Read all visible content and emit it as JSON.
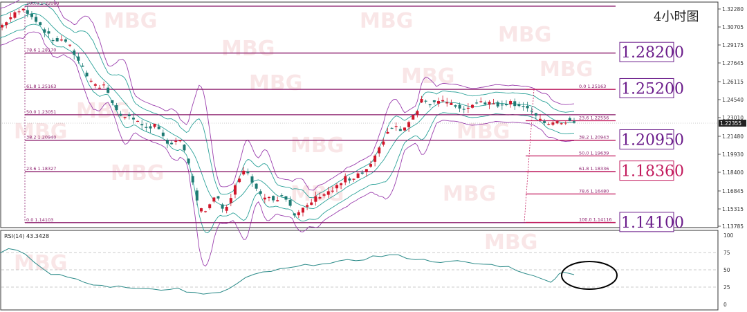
{
  "chart_data": {
    "type": "candlestick",
    "timeframe_label": "4小时图",
    "watermark": "MBG",
    "y_ticks": [
      "1.32280",
      "1.30705",
      "1.29175",
      "1.27645",
      "1.26115",
      "1.24540",
      "1.23010",
      "1.21480",
      "1.19930",
      "1.18400",
      "1.16845",
      "1.15315",
      "1.13785"
    ],
    "ylim": [
      1.1369,
      1.324
    ],
    "current_price": 1.22355,
    "current_price_label": "1.22355",
    "fib_left": [
      {
        "label": "100.0  1.32060",
        "price": 1.3206
      },
      {
        "label": "78.6  1.28170",
        "price": 1.2817
      },
      {
        "label": "61.8  1.25163",
        "price": 1.25163
      },
      {
        "label": "50.0  1.23051",
        "price": 1.23051
      },
      {
        "label": "38.2  1.20940",
        "price": 1.2094
      },
      {
        "label": "23.6  1.18327",
        "price": 1.18327
      },
      {
        "label": "0.0  1.14103",
        "price": 1.14103
      }
    ],
    "fib_right": [
      {
        "label": "0.0  1.25163",
        "price": 1.25163
      },
      {
        "label": "23.6  1.22556",
        "price": 1.22556
      },
      {
        "label": "38.2  1.20943",
        "price": 1.20943
      },
      {
        "label": "50.0  1.19639",
        "price": 1.19639
      },
      {
        "label": "61.8  1.18336",
        "price": 1.18336
      },
      {
        "label": "78.6  1.16480",
        "price": 1.1648
      },
      {
        "label": "100.0  1.14116",
        "price": 1.14116
      }
    ],
    "key_levels": [
      {
        "label": "1.28200",
        "price": 1.282,
        "color": "#6a1b8a"
      },
      {
        "label": "1.25200",
        "price": 1.252,
        "color": "#6a1b8a"
      },
      {
        "label": "1.20950",
        "price": 1.2095,
        "color": "#6a1b8a"
      },
      {
        "label": "1.18360",
        "price": 1.1836,
        "color": "#c2185b"
      },
      {
        "label": "1.14100",
        "price": 1.141,
        "color": "#6a1b8a"
      }
    ],
    "close_path": [
      [
        0,
        1.303
      ],
      [
        4,
        1.31
      ],
      [
        7,
        1.314
      ],
      [
        10,
        1.318
      ],
      [
        13,
        1.316
      ],
      [
        16,
        1.311
      ],
      [
        19,
        1.305
      ],
      [
        22,
        1.298
      ],
      [
        25,
        1.292
      ],
      [
        28,
        1.293
      ],
      [
        31,
        1.292
      ],
      [
        34,
        1.284
      ],
      [
        37,
        1.276
      ],
      [
        40,
        1.266
      ],
      [
        43,
        1.257
      ],
      [
        46,
        1.253
      ],
      [
        49,
        1.256
      ],
      [
        52,
        1.244
      ],
      [
        55,
        1.236
      ],
      [
        58,
        1.227
      ],
      [
        61,
        1.23
      ],
      [
        64,
        1.225
      ],
      [
        67,
        1.222
      ],
      [
        70,
        1.22
      ],
      [
        73,
        1.222
      ],
      [
        76,
        1.214
      ],
      [
        79,
        1.206
      ],
      [
        82,
        1.209
      ],
      [
        85,
        1.21
      ],
      [
        88,
        1.195
      ],
      [
        91,
        1.175
      ],
      [
        94,
        1.152
      ],
      [
        97,
        1.149
      ],
      [
        100,
        1.16
      ],
      [
        103,
        1.162
      ],
      [
        106,
        1.15
      ],
      [
        109,
        1.16
      ],
      [
        112,
        1.176
      ],
      [
        115,
        1.186
      ],
      [
        118,
        1.178
      ],
      [
        121,
        1.171
      ],
      [
        124,
        1.162
      ],
      [
        127,
        1.163
      ],
      [
        130,
        1.16
      ],
      [
        133,
        1.165
      ],
      [
        136,
        1.16
      ],
      [
        139,
        1.146
      ],
      [
        142,
        1.15
      ],
      [
        145,
        1.155
      ],
      [
        148,
        1.16
      ],
      [
        151,
        1.164
      ],
      [
        154,
        1.166
      ],
      [
        157,
        1.168
      ],
      [
        160,
        1.172
      ],
      [
        163,
        1.178
      ],
      [
        166,
        1.175
      ],
      [
        169,
        1.18
      ],
      [
        172,
        1.183
      ],
      [
        175,
        1.188
      ],
      [
        178,
        1.198
      ],
      [
        181,
        1.21
      ],
      [
        184,
        1.219
      ],
      [
        187,
        1.22
      ],
      [
        190,
        1.216
      ],
      [
        193,
        1.225
      ],
      [
        196,
        1.23
      ],
      [
        199,
        1.245
      ],
      [
        202,
        1.24
      ],
      [
        205,
        1.241
      ],
      [
        208,
        1.243
      ],
      [
        211,
        1.24
      ],
      [
        214,
        1.238
      ],
      [
        217,
        1.237
      ],
      [
        220,
        1.234
      ],
      [
        223,
        1.24
      ],
      [
        226,
        1.242
      ],
      [
        229,
        1.241
      ],
      [
        232,
        1.24
      ],
      [
        235,
        1.239
      ],
      [
        238,
        1.24
      ],
      [
        241,
        1.241
      ],
      [
        244,
        1.239
      ],
      [
        247,
        1.238
      ],
      [
        250,
        1.235
      ],
      [
        253,
        1.228
      ],
      [
        256,
        1.224
      ],
      [
        259,
        1.224
      ],
      [
        262,
        1.223
      ],
      [
        265,
        1.224
      ],
      [
        268,
        1.226
      ],
      [
        271,
        1.223
      ]
    ],
    "rsi": {
      "label": "RSI(14) 43.3428",
      "period": 14,
      "last_value": 43.3428,
      "y_ticks": [
        "100",
        "75",
        "50",
        "25",
        "0"
      ],
      "ylim": [
        0,
        100
      ],
      "levels": [
        75,
        50,
        25
      ],
      "series": [
        [
          0,
          76
        ],
        [
          4,
          82
        ],
        [
          8,
          80
        ],
        [
          12,
          72
        ],
        [
          16,
          62
        ],
        [
          20,
          52
        ],
        [
          24,
          45
        ],
        [
          28,
          43
        ],
        [
          32,
          38
        ],
        [
          36,
          35
        ],
        [
          40,
          32
        ],
        [
          44,
          28
        ],
        [
          48,
          27
        ],
        [
          52,
          26
        ],
        [
          56,
          25
        ],
        [
          60,
          24
        ],
        [
          64,
          24
        ],
        [
          68,
          23
        ],
        [
          72,
          24
        ],
        [
          76,
          22
        ],
        [
          80,
          21
        ],
        [
          84,
          23
        ],
        [
          88,
          19
        ],
        [
          92,
          16
        ],
        [
          96,
          14
        ],
        [
          100,
          15
        ],
        [
          104,
          18
        ],
        [
          108,
          22
        ],
        [
          112,
          30
        ],
        [
          116,
          38
        ],
        [
          120,
          42
        ],
        [
          124,
          46
        ],
        [
          128,
          48
        ],
        [
          132,
          50
        ],
        [
          136,
          52
        ],
        [
          140,
          54
        ],
        [
          144,
          56
        ],
        [
          148,
          58
        ],
        [
          152,
          60
        ],
        [
          156,
          59
        ],
        [
          160,
          61
        ],
        [
          164,
          63
        ],
        [
          168,
          64
        ],
        [
          172,
          66
        ],
        [
          176,
          69
        ],
        [
          180,
          70
        ],
        [
          184,
          71
        ],
        [
          188,
          70
        ],
        [
          192,
          68
        ],
        [
          196,
          66
        ],
        [
          200,
          64
        ],
        [
          204,
          63
        ],
        [
          208,
          62
        ],
        [
          212,
          61
        ],
        [
          216,
          62
        ],
        [
          220,
          60
        ],
        [
          224,
          59
        ],
        [
          228,
          58
        ],
        [
          232,
          57
        ],
        [
          236,
          56
        ],
        [
          240,
          54
        ],
        [
          244,
          50
        ],
        [
          248,
          46
        ],
        [
          252,
          40
        ],
        [
          256,
          36
        ],
        [
          260,
          34
        ],
        [
          262,
          38
        ],
        [
          264,
          44
        ],
        [
          266,
          48
        ],
        [
          268,
          46
        ],
        [
          271,
          43.3
        ]
      ]
    }
  }
}
